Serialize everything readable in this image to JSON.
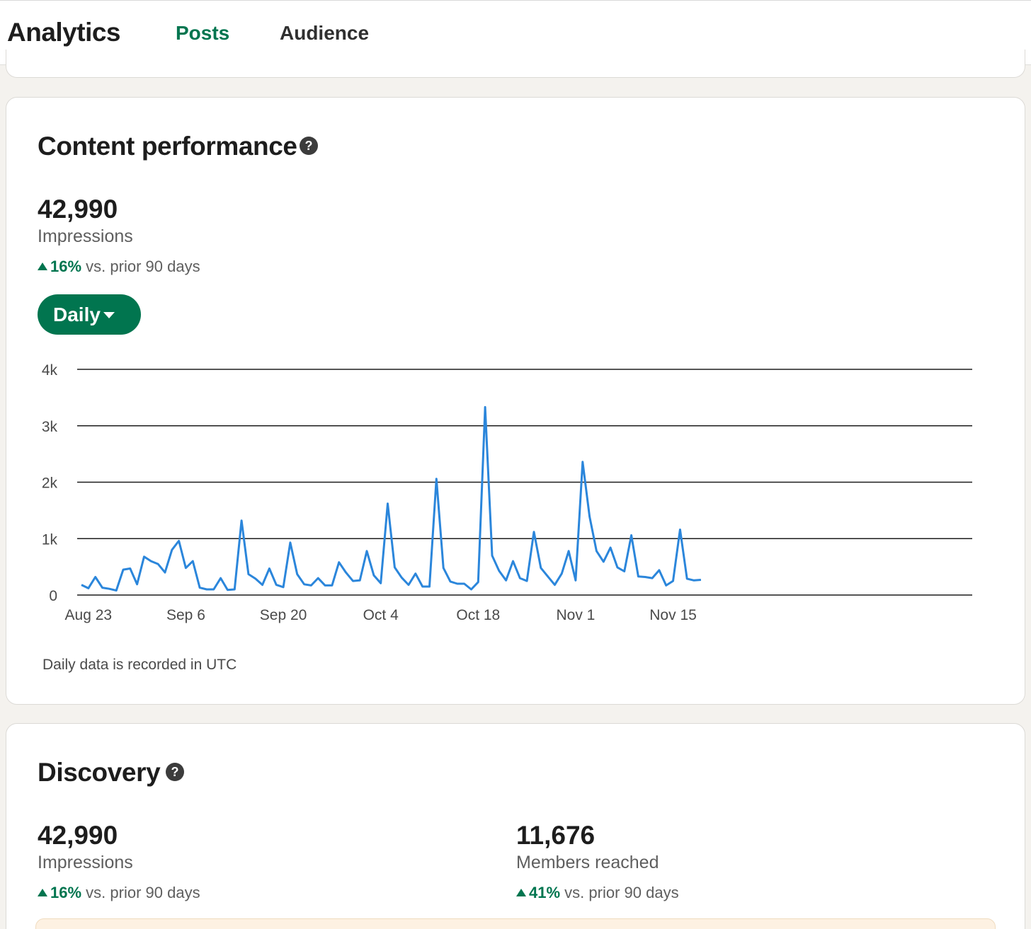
{
  "header": {
    "title": "Analytics",
    "tabs": [
      {
        "label": "Posts",
        "active": true
      },
      {
        "label": "Audience",
        "active": false
      }
    ]
  },
  "content_performance": {
    "title": "Content performance",
    "help_icon": "question-circle-icon",
    "value": "42,990",
    "label": "Impressions",
    "change_pct": "16%",
    "change_text": "vs. prior 90 days",
    "interval_button": "Daily",
    "note": "Daily data is recorded in UTC"
  },
  "chart_data": {
    "type": "line",
    "y_tick_labels": [
      "0",
      "1k",
      "2k",
      "3k",
      "4k"
    ],
    "ylim": [
      0,
      4000
    ],
    "x_tick_labels": [
      "Aug 23",
      "Sep 6",
      "Sep 20",
      "Oct 4",
      "Oct 18",
      "Nov 1",
      "Nov 15"
    ],
    "x_start": "Aug 22",
    "grid": true,
    "line_color": "#2b86db",
    "values": [
      180,
      120,
      320,
      130,
      110,
      80,
      450,
      470,
      190,
      680,
      600,
      550,
      400,
      800,
      960,
      480,
      600,
      130,
      100,
      100,
      300,
      90,
      100,
      1320,
      370,
      290,
      180,
      470,
      180,
      140,
      930,
      370,
      190,
      170,
      300,
      170,
      170,
      580,
      400,
      250,
      260,
      780,
      350,
      210,
      1620,
      490,
      310,
      180,
      380,
      150,
      150,
      2060,
      480,
      240,
      200,
      200,
      100,
      230,
      3330,
      700,
      430,
      260,
      600,
      300,
      250,
      1120,
      480,
      330,
      180,
      380,
      780,
      260,
      2360,
      1390,
      780,
      590,
      840,
      490,
      420,
      1060,
      330,
      320,
      300,
      440,
      170,
      250,
      1160,
      290,
      260,
      270
    ]
  },
  "discovery": {
    "title": "Discovery",
    "help_icon": "question-circle-icon",
    "metrics": [
      {
        "value": "42,990",
        "label": "Impressions",
        "change_pct": "16%",
        "change_text": "vs. prior 90 days"
      },
      {
        "value": "11,676",
        "label": "Members reached",
        "change_pct": "41%",
        "change_text": "vs. prior 90 days"
      }
    ]
  },
  "colors": {
    "brand_green": "#01754f",
    "line_blue": "#2b86db",
    "page_bg": "#f4f2ee"
  }
}
